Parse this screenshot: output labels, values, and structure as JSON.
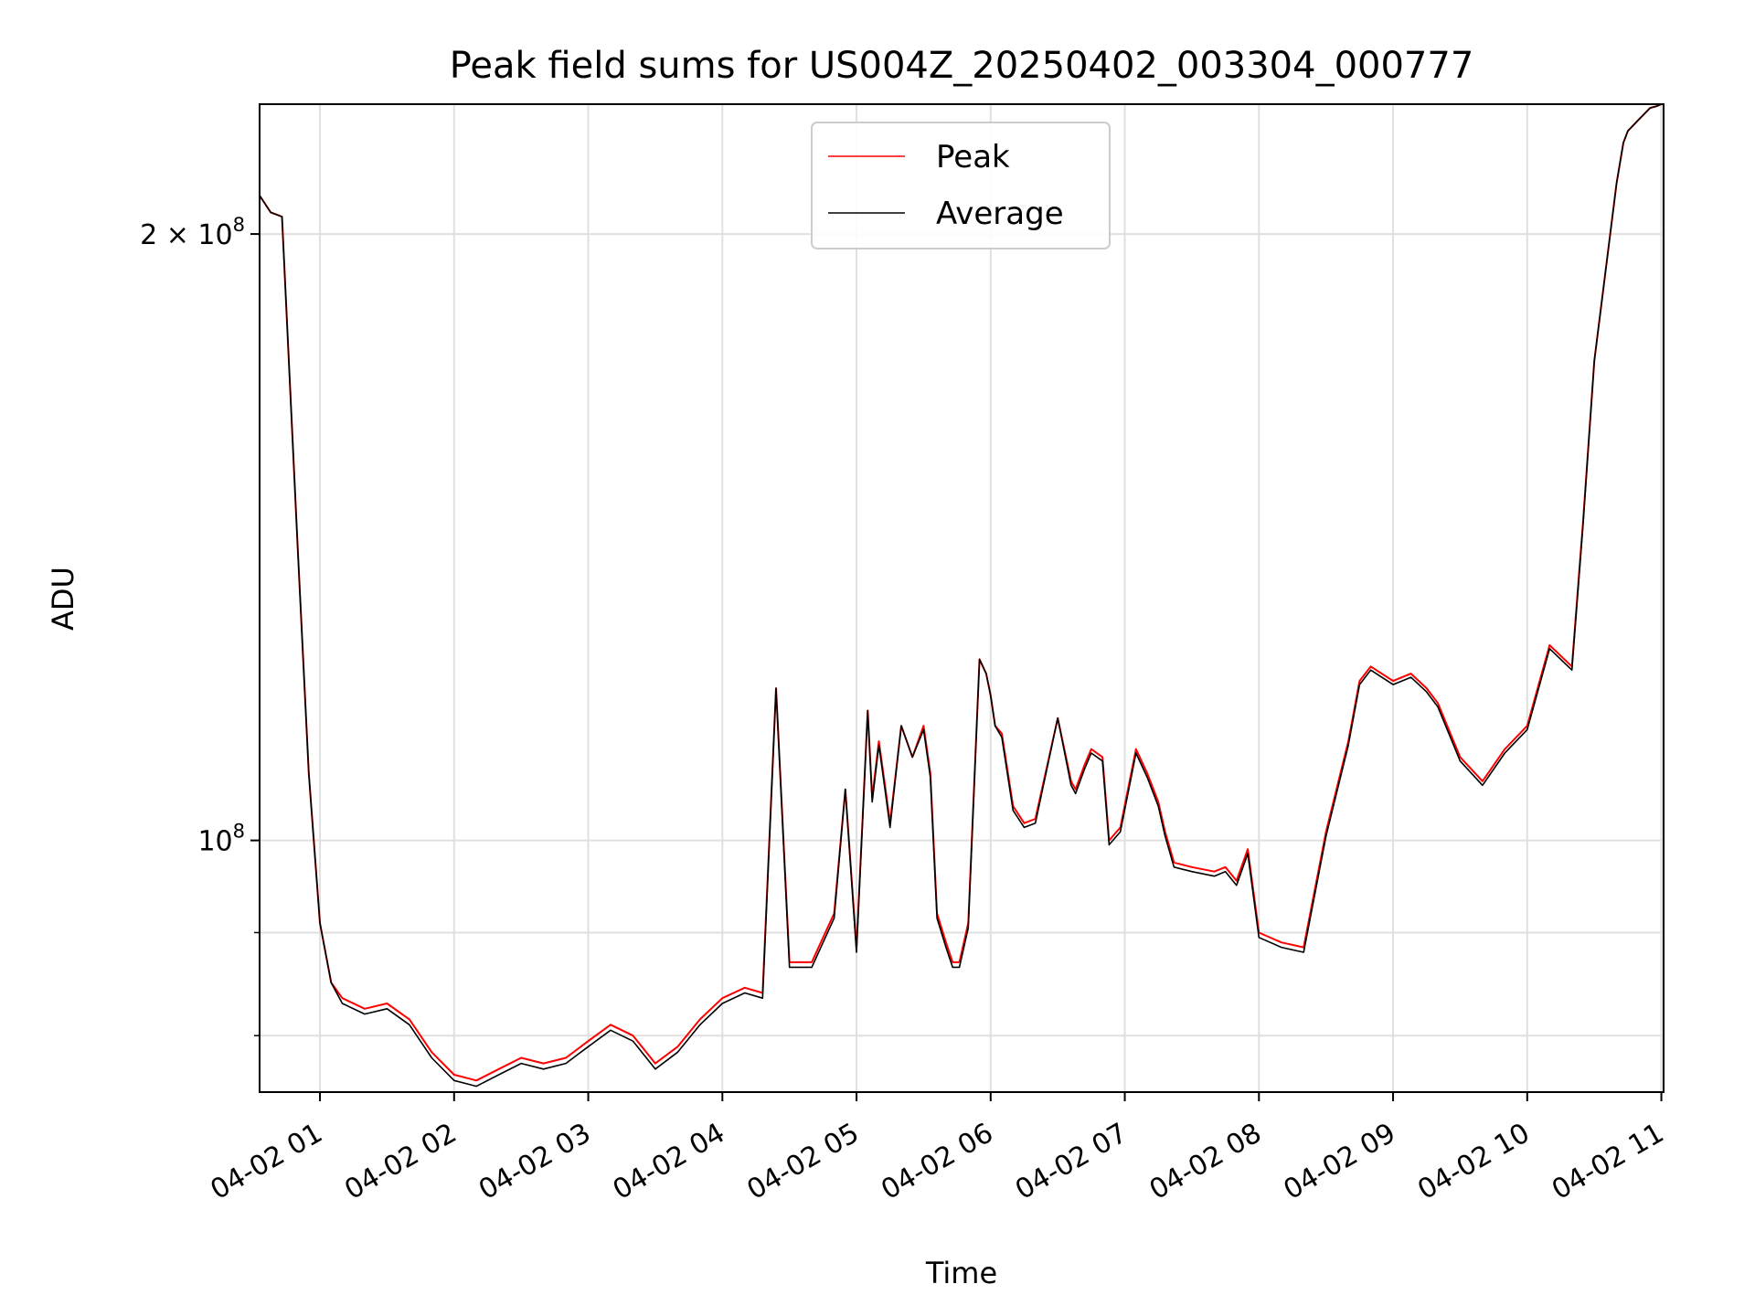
{
  "chart_data": {
    "type": "line",
    "title": "Peak field sums for US004Z_20250402_003304_000777",
    "xlabel": "Time",
    "ylabel": "ADU",
    "y_scale": "log",
    "ylim": [
      75000000,
      232000000
    ],
    "xlim": [
      "2025-04-02 00:33",
      "2025-04-02 11:01"
    ],
    "grid": true,
    "legend_position": "top-center",
    "x_ticks": [
      "04-02 01",
      "04-02 02",
      "04-02 03",
      "04-02 04",
      "04-02 05",
      "04-02 06",
      "04-02 07",
      "04-02 08",
      "04-02 09",
      "04-02 10",
      "04-02 11"
    ],
    "y_ticks": [
      {
        "value": 200000000,
        "label_base": "2 × 10",
        "label_exp": "8"
      },
      {
        "value": 100000000,
        "label_base": "10",
        "label_exp": "8"
      }
    ],
    "x": [
      "00:33",
      "00:38",
      "00:43",
      "00:50",
      "00:55",
      "01:00",
      "01:05",
      "01:10",
      "01:20",
      "01:30",
      "01:40",
      "01:50",
      "02:00",
      "02:10",
      "02:20",
      "02:30",
      "02:40",
      "02:50",
      "03:00",
      "03:10",
      "03:20",
      "03:30",
      "03:40",
      "03:50",
      "04:00",
      "04:10",
      "04:18",
      "04:24",
      "04:30",
      "04:40",
      "04:50",
      "04:55",
      "05:00",
      "05:05",
      "05:07",
      "05:10",
      "05:13",
      "05:15",
      "05:20",
      "05:25",
      "05:30",
      "05:33",
      "05:36",
      "05:40",
      "05:43",
      "05:46",
      "05:50",
      "05:55",
      "05:58",
      "06:00",
      "06:02",
      "06:05",
      "06:10",
      "06:15",
      "06:20",
      "06:30",
      "06:36",
      "06:38",
      "06:42",
      "06:45",
      "06:50",
      "06:53",
      "06:58",
      "07:05",
      "07:10",
      "07:15",
      "07:18",
      "07:22",
      "07:30",
      "07:40",
      "07:45",
      "07:50",
      "07:55",
      "08:00",
      "08:10",
      "08:20",
      "08:30",
      "08:40",
      "08:45",
      "08:50",
      "09:00",
      "09:08",
      "09:15",
      "09:20",
      "09:30",
      "09:40",
      "09:50",
      "10:00",
      "10:10",
      "10:20",
      "10:25",
      "10:30",
      "10:40",
      "10:43",
      "10:45",
      "10:50",
      "10:55",
      "10:58",
      "11:00",
      "11:01"
    ],
    "series": [
      {
        "name": "Peak",
        "color": "#ff0000",
        "values": [
          209000000,
          205000000,
          204000000,
          140000000,
          108000000,
          91000000,
          85000000,
          83500000,
          82500000,
          83000000,
          81500000,
          78500000,
          76500000,
          76000000,
          77000000,
          78000000,
          77500000,
          78000000,
          79500000,
          81000000,
          80000000,
          77500000,
          79000000,
          81500000,
          83500000,
          84500000,
          84000000,
          119000000,
          87000000,
          87000000,
          92000000,
          106000000,
          88500000,
          116000000,
          105000000,
          112000000,
          106000000,
          102000000,
          114000000,
          110000000,
          114000000,
          108000000,
          92000000,
          89000000,
          87000000,
          87000000,
          91000000,
          123000000,
          121000000,
          118000000,
          114000000,
          113000000,
          104000000,
          102000000,
          102500000,
          115000000,
          107000000,
          106000000,
          109000000,
          111000000,
          110000000,
          100000000,
          101500000,
          111000000,
          108000000,
          104500000,
          101000000,
          97500000,
          97000000,
          96500000,
          97000000,
          95500000,
          99000000,
          90000000,
          89000000,
          88500000,
          101000000,
          112000000,
          120000000,
          122000000,
          120000000,
          121000000,
          119000000,
          117000000,
          110000000,
          107000000,
          111000000,
          114000000,
          125000000,
          122000000,
          144000000,
          173000000,
          212000000,
          222000000,
          225000000,
          228000000,
          231000000,
          231500000,
          232000000,
          232000000
        ]
      },
      {
        "name": "Average",
        "color": "#000000",
        "values": [
          209000000,
          205000000,
          204000000,
          140000000,
          108000000,
          91000000,
          85000000,
          83000000,
          82000000,
          82500000,
          81000000,
          78000000,
          76000000,
          75500000,
          76500000,
          77500000,
          77000000,
          77500000,
          79000000,
          80500000,
          79500000,
          77000000,
          78500000,
          81000000,
          83000000,
          84000000,
          83500000,
          119000000,
          86500000,
          86500000,
          91500000,
          106000000,
          88000000,
          116000000,
          104500000,
          111500000,
          105500000,
          101500000,
          114000000,
          110000000,
          113500000,
          107500000,
          91500000,
          88500000,
          86500000,
          86500000,
          90500000,
          123000000,
          121000000,
          118000000,
          114000000,
          112500000,
          103500000,
          101500000,
          102000000,
          115000000,
          106500000,
          105500000,
          108500000,
          110500000,
          109500000,
          99500000,
          101000000,
          110500000,
          107500000,
          104000000,
          100500000,
          97000000,
          96500000,
          96000000,
          96500000,
          95000000,
          98500000,
          89500000,
          88500000,
          88000000,
          100500000,
          111500000,
          119500000,
          121500000,
          119500000,
          120500000,
          118500000,
          116500000,
          109500000,
          106500000,
          110500000,
          113500000,
          124500000,
          121500000,
          143500000,
          173000000,
          212000000,
          222000000,
          225000000,
          228000000,
          231000000,
          231500000,
          232000000,
          232000000
        ]
      }
    ]
  }
}
